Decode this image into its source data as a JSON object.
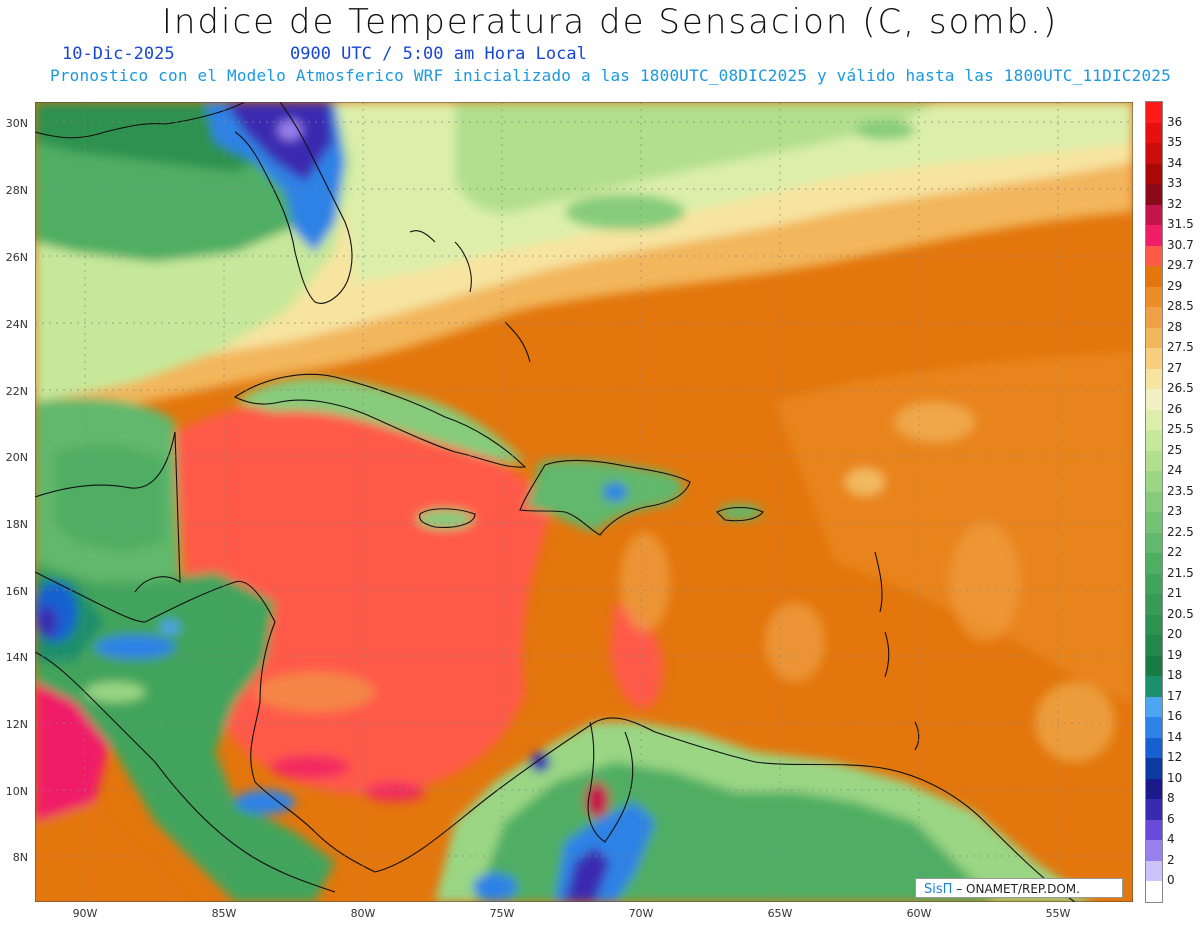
{
  "title": "Indice de Temperatura de Sensacion (C, somb.)",
  "date": "10-Dic-2025",
  "time": "0900 UTC / 5:00 am Hora Local",
  "model_line": "Pronostico con el Modelo Atmosferico WRF inicializado a las 1800UTC_08DIC2025 y válido hasta las  1800UTC_11DIC2025",
  "lat_ticks": [
    "30N",
    "28N",
    "26N",
    "24N",
    "22N",
    "20N",
    "18N",
    "16N",
    "14N",
    "12N",
    "10N",
    "8N"
  ],
  "lon_ticks": [
    "90W",
    "85W",
    "80W",
    "75W",
    "70W",
    "65W",
    "60W",
    "55W"
  ],
  "legend": {
    "labels": [
      "36",
      "35",
      "34",
      "33",
      "32",
      "31.5",
      "30.7",
      "29.7",
      "29",
      "28.5",
      "28",
      "27.5",
      "27",
      "26.5",
      "26",
      "25.5",
      "25",
      "24",
      "23.5",
      "23",
      "22.5",
      "22",
      "21.5",
      "21",
      "20.5",
      "20",
      "19",
      "18",
      "17",
      "16",
      "14",
      "12",
      "10",
      "8",
      "6",
      "4",
      "2",
      "0"
    ],
    "colors": [
      "#ff1a1a",
      "#e61010",
      "#cc0b0b",
      "#a80808",
      "#8b0a1a",
      "#c4144c",
      "#f01e68",
      "#ff5a48",
      "#e3760c",
      "#ec8e28",
      "#f0a046",
      "#f2b65c",
      "#f6d07c",
      "#f7e4a0",
      "#f3f0c4",
      "#dcefaa",
      "#c6e89a",
      "#b2df8c",
      "#9ad684",
      "#86cc7c",
      "#74c274",
      "#62b86c",
      "#50ae64",
      "#42a45c",
      "#389a56",
      "#2f9150",
      "#23864a",
      "#187b44",
      "#1d8f6a",
      "#4ea4f0",
      "#2f82e6",
      "#1660d2",
      "#0c3aa0",
      "#1a1a8a",
      "#3a2ab0",
      "#6a4ad8",
      "#9a80ee",
      "#ccc4f8",
      "#ffffff"
    ]
  },
  "credit": {
    "brand": "SisΠ",
    "text": " – ONAMET/REP.DOM."
  }
}
